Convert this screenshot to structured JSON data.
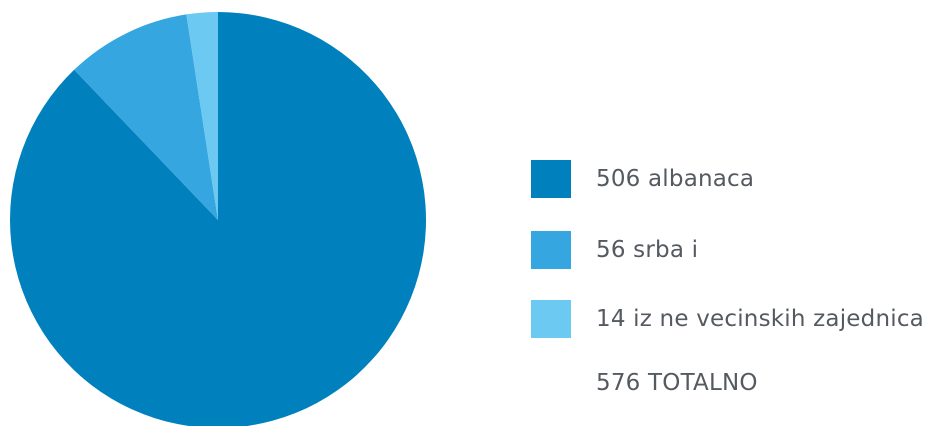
{
  "chart_data": {
    "type": "pie",
    "slices": [
      {
        "label": "506 albanaca",
        "value": 506,
        "color": "#0080bd"
      },
      {
        "label": "56 srba i",
        "value": 56,
        "color": "#35a6e0"
      },
      {
        "label": "14 iz ne vecinskih zajednica",
        "value": 14,
        "color": "#6cc9f2"
      }
    ],
    "total_label": "576 TOTALNO",
    "legend_position": "right"
  }
}
